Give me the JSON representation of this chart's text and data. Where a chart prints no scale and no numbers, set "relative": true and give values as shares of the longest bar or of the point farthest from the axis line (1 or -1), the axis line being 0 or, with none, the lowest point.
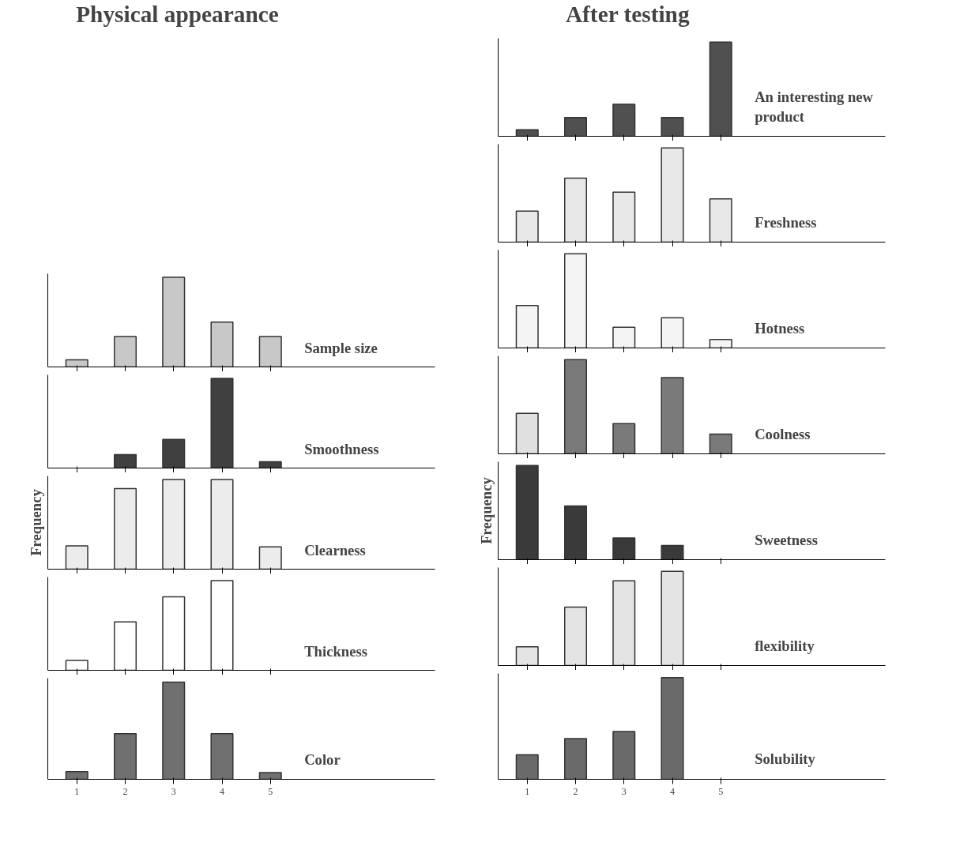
{
  "chart_data": [
    {
      "type": "other",
      "title": "Physical appearance"
    },
    {
      "type": "bar",
      "categories": [
        "1",
        "2",
        "3",
        "4",
        "5"
      ],
      "relative": true,
      "tick_labels": false,
      "series": [
        {
          "name": "Sample size",
          "color": "#c8c8c8",
          "values": [
            0.08,
            0.34,
            1,
            0.5,
            0.34
          ]
        }
      ]
    },
    {
      "type": "bar",
      "categories": [
        "1",
        "2",
        "3",
        "4",
        "5"
      ],
      "relative": true,
      "tick_labels": false,
      "series": [
        {
          "name": "Smoothness",
          "color": "#404040",
          "values": [
            null,
            0.15,
            0.32,
            1,
            0.07
          ]
        }
      ]
    },
    {
      "type": "bar",
      "ylabel": "Frequency",
      "categories": [
        "1",
        "2",
        "3",
        "4",
        "5"
      ],
      "relative": true,
      "tick_labels": false,
      "series": [
        {
          "name": "Clearness",
          "color": "#ececec",
          "values": [
            0.26,
            0.9,
            1,
            1,
            0.25
          ]
        }
      ]
    },
    {
      "type": "bar",
      "categories": [
        "1",
        "2",
        "3",
        "4",
        "5"
      ],
      "relative": true,
      "tick_labels": false,
      "series": [
        {
          "name": "Thickness",
          "color": "#ffffff",
          "values": [
            0.11,
            0.54,
            0.82,
            1,
            null
          ]
        }
      ]
    },
    {
      "type": "bar",
      "categories": [
        "1",
        "2",
        "3",
        "4",
        "5"
      ],
      "relative": true,
      "tick_labels": "x",
      "series": [
        {
          "name": "Color",
          "color": "#707070",
          "values": [
            0.08,
            0.47,
            1,
            0.47,
            0.07
          ]
        }
      ]
    },
    {
      "type": "other",
      "title": "After testing"
    },
    {
      "type": "bar",
      "categories": [
        "1",
        "2",
        "3",
        "4",
        "5"
      ],
      "relative": true,
      "tick_labels": false,
      "series": [
        {
          "name": "An interesting new product",
          "color": "#505050",
          "values": [
            0.07,
            0.2,
            0.34,
            0.2,
            1
          ]
        }
      ]
    },
    {
      "type": "bar",
      "categories": [
        "1",
        "2",
        "3",
        "4",
        "5"
      ],
      "relative": true,
      "tick_labels": false,
      "series": [
        {
          "name": "Freshness",
          "color": "#e8e8e8",
          "values": [
            0.33,
            0.68,
            0.53,
            1,
            0.46
          ]
        }
      ]
    },
    {
      "type": "bar",
      "categories": [
        "1",
        "2",
        "3",
        "4",
        "5"
      ],
      "relative": true,
      "tick_labels": false,
      "series": [
        {
          "name": "Hotness",
          "color": "#f4f4f4",
          "values": [
            0.45,
            1,
            0.22,
            0.32,
            0.09
          ]
        }
      ]
    },
    {
      "type": "bar",
      "categories": [
        "1",
        "2",
        "3",
        "4",
        "5"
      ],
      "relative": true,
      "tick_labels": false,
      "series": [
        {
          "name": "Coolness",
          "colors": [
            "#e0e0e0",
            "#7a7a7a",
            "#7a7a7a",
            "#7a7a7a",
            "#7a7a7a"
          ],
          "values": [
            0.43,
            1,
            0.32,
            0.81,
            0.21
          ]
        }
      ]
    },
    {
      "type": "bar",
      "ylabel": "Frequency",
      "categories": [
        "1",
        "2",
        "3",
        "4",
        "5"
      ],
      "relative": true,
      "tick_labels": false,
      "series": [
        {
          "name": "Sweetness",
          "color": "#3a3a3a",
          "values": [
            1,
            0.57,
            0.23,
            0.15,
            null
          ]
        }
      ]
    },
    {
      "type": "bar",
      "categories": [
        "1",
        "2",
        "3",
        "4",
        "5"
      ],
      "relative": true,
      "tick_labels": false,
      "series": [
        {
          "name": "flexibility",
          "color": "#e4e4e4",
          "values": [
            0.2,
            0.62,
            0.9,
            1,
            null
          ]
        }
      ]
    },
    {
      "type": "bar",
      "categories": [
        "1",
        "2",
        "3",
        "4",
        "5"
      ],
      "relative": true,
      "tick_labels": "x",
      "series": [
        {
          "name": "Solubility",
          "color": "#6a6a6a",
          "values": [
            0.24,
            0.4,
            0.47,
            1,
            null
          ]
        }
      ]
    }
  ]
}
